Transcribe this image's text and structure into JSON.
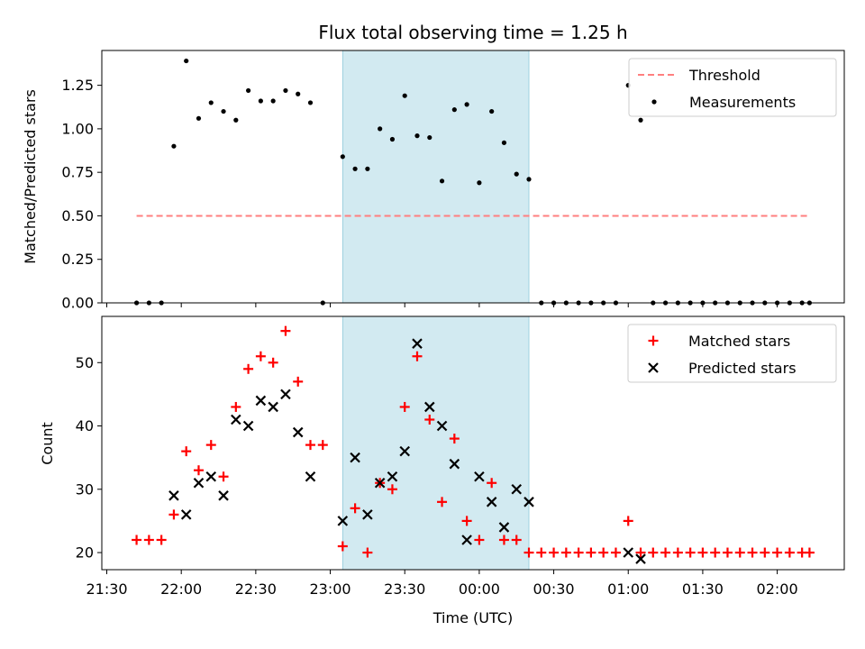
{
  "chart_data": [
    {
      "type": "scatter",
      "title": "Flux total observing time = 1.25 h",
      "ylabel": "Matched/Predicted stars",
      "xlabel": "",
      "ylim": [
        0,
        1.45
      ],
      "yticks": [
        "0.00",
        "0.25",
        "0.50",
        "0.75",
        "1.00",
        "1.25"
      ],
      "shaded_region": {
        "x_start": "23:05",
        "x_end": "00:20",
        "color": "#add8e6"
      },
      "threshold": {
        "y": 0.5,
        "x_start": "21:42",
        "x_end": "02:13",
        "color": "#ff7f7f",
        "style": "dashed"
      },
      "legend": {
        "position": "top-right",
        "entries": [
          "Threshold",
          "Measurements"
        ]
      },
      "series": [
        {
          "name": "Measurements",
          "color": "#000000",
          "marker": "dot",
          "points": [
            [
              "21:42",
              0.0
            ],
            [
              "21:47",
              0.0
            ],
            [
              "21:52",
              0.0
            ],
            [
              "21:57",
              0.9
            ],
            [
              "22:02",
              1.39
            ],
            [
              "22:07",
              1.06
            ],
            [
              "22:12",
              1.15
            ],
            [
              "22:17",
              1.1
            ],
            [
              "22:22",
              1.05
            ],
            [
              "22:27",
              1.22
            ],
            [
              "22:32",
              1.16
            ],
            [
              "22:37",
              1.16
            ],
            [
              "22:42",
              1.22
            ],
            [
              "22:47",
              1.2
            ],
            [
              "22:52",
              1.15
            ],
            [
              "22:57",
              0.0
            ],
            [
              "23:05",
              0.84
            ],
            [
              "23:10",
              0.77
            ],
            [
              "23:15",
              0.77
            ],
            [
              "23:20",
              1.0
            ],
            [
              "23:25",
              0.94
            ],
            [
              "23:30",
              1.19
            ],
            [
              "23:35",
              0.96
            ],
            [
              "23:40",
              0.95
            ],
            [
              "23:45",
              0.7
            ],
            [
              "23:50",
              1.11
            ],
            [
              "23:55",
              1.14
            ],
            [
              "00:00",
              0.69
            ],
            [
              "00:05",
              1.1
            ],
            [
              "00:10",
              0.92
            ],
            [
              "00:15",
              0.74
            ],
            [
              "00:20",
              0.71
            ],
            [
              "00:25",
              0.0
            ],
            [
              "00:30",
              0.0
            ],
            [
              "00:35",
              0.0
            ],
            [
              "00:40",
              0.0
            ],
            [
              "00:45",
              0.0
            ],
            [
              "00:50",
              0.0
            ],
            [
              "00:55",
              0.0
            ],
            [
              "01:00",
              1.25
            ],
            [
              "01:05",
              1.05
            ],
            [
              "01:10",
              0.0
            ],
            [
              "01:15",
              0.0
            ],
            [
              "01:20",
              0.0
            ],
            [
              "01:25",
              0.0
            ],
            [
              "01:30",
              0.0
            ],
            [
              "01:35",
              0.0
            ],
            [
              "01:40",
              0.0
            ],
            [
              "01:45",
              0.0
            ],
            [
              "01:50",
              0.0
            ],
            [
              "01:55",
              0.0
            ],
            [
              "02:00",
              0.0
            ],
            [
              "02:05",
              0.0
            ],
            [
              "02:10",
              0.0
            ],
            [
              "02:13",
              0.0
            ]
          ]
        }
      ]
    },
    {
      "type": "scatter",
      "title": "",
      "ylabel": "Count",
      "xlabel": "Time (UTC)",
      "ylim": [
        17.3,
        57.3
      ],
      "yticks": [
        "20",
        "30",
        "40",
        "50"
      ],
      "xticks": [
        "21:30",
        "22:00",
        "22:30",
        "23:00",
        "23:30",
        "00:00",
        "00:30",
        "01:00",
        "01:30",
        "02:00"
      ],
      "shaded_region": {
        "x_start": "23:05",
        "x_end": "00:20",
        "color": "#add8e6"
      },
      "legend": {
        "position": "top-right",
        "entries": [
          "Matched stars",
          "Predicted stars"
        ]
      },
      "series": [
        {
          "name": "Matched stars",
          "color": "#ff0000",
          "marker": "plus",
          "points": [
            [
              "21:42",
              22
            ],
            [
              "21:47",
              22
            ],
            [
              "21:52",
              22
            ],
            [
              "21:57",
              26
            ],
            [
              "22:02",
              36
            ],
            [
              "22:07",
              33
            ],
            [
              "22:12",
              37
            ],
            [
              "22:17",
              32
            ],
            [
              "22:22",
              43
            ],
            [
              "22:27",
              49
            ],
            [
              "22:32",
              51
            ],
            [
              "22:37",
              50
            ],
            [
              "22:42",
              55
            ],
            [
              "22:47",
              47
            ],
            [
              "22:52",
              37
            ],
            [
              "22:57",
              37
            ],
            [
              "23:05",
              21
            ],
            [
              "23:10",
              27
            ],
            [
              "23:15",
              20
            ],
            [
              "23:20",
              31
            ],
            [
              "23:25",
              30
            ],
            [
              "23:30",
              43
            ],
            [
              "23:35",
              51
            ],
            [
              "23:40",
              41
            ],
            [
              "23:45",
              28
            ],
            [
              "23:50",
              38
            ],
            [
              "23:55",
              25
            ],
            [
              "00:00",
              22
            ],
            [
              "00:05",
              31
            ],
            [
              "00:10",
              22
            ],
            [
              "00:15",
              22
            ],
            [
              "00:20",
              20
            ],
            [
              "00:25",
              20
            ],
            [
              "00:30",
              20
            ],
            [
              "00:35",
              20
            ],
            [
              "00:40",
              20
            ],
            [
              "00:45",
              20
            ],
            [
              "00:50",
              20
            ],
            [
              "00:55",
              20
            ],
            [
              "01:00",
              25
            ],
            [
              "01:05",
              20
            ],
            [
              "01:10",
              20
            ],
            [
              "01:15",
              20
            ],
            [
              "01:20",
              20
            ],
            [
              "01:25",
              20
            ],
            [
              "01:30",
              20
            ],
            [
              "01:35",
              20
            ],
            [
              "01:40",
              20
            ],
            [
              "01:45",
              20
            ],
            [
              "01:50",
              20
            ],
            [
              "01:55",
              20
            ],
            [
              "02:00",
              20
            ],
            [
              "02:05",
              20
            ],
            [
              "02:10",
              20
            ],
            [
              "02:13",
              20
            ]
          ]
        },
        {
          "name": "Predicted stars",
          "color": "#000000",
          "marker": "x",
          "points": [
            [
              "21:57",
              29
            ],
            [
              "22:02",
              26
            ],
            [
              "22:07",
              31
            ],
            [
              "22:12",
              32
            ],
            [
              "22:17",
              29
            ],
            [
              "22:22",
              41
            ],
            [
              "22:27",
              40
            ],
            [
              "22:32",
              44
            ],
            [
              "22:37",
              43
            ],
            [
              "22:42",
              45
            ],
            [
              "22:47",
              39
            ],
            [
              "22:52",
              32
            ],
            [
              "23:05",
              25
            ],
            [
              "23:10",
              35
            ],
            [
              "23:15",
              26
            ],
            [
              "23:20",
              31
            ],
            [
              "23:25",
              32
            ],
            [
              "23:30",
              36
            ],
            [
              "23:35",
              53
            ],
            [
              "23:40",
              43
            ],
            [
              "23:45",
              40
            ],
            [
              "23:50",
              34
            ],
            [
              "23:55",
              22
            ],
            [
              "00:00",
              32
            ],
            [
              "00:05",
              28
            ],
            [
              "00:10",
              24
            ],
            [
              "00:15",
              30
            ],
            [
              "00:20",
              28
            ],
            [
              "01:00",
              20
            ],
            [
              "01:05",
              19
            ]
          ]
        }
      ]
    }
  ]
}
